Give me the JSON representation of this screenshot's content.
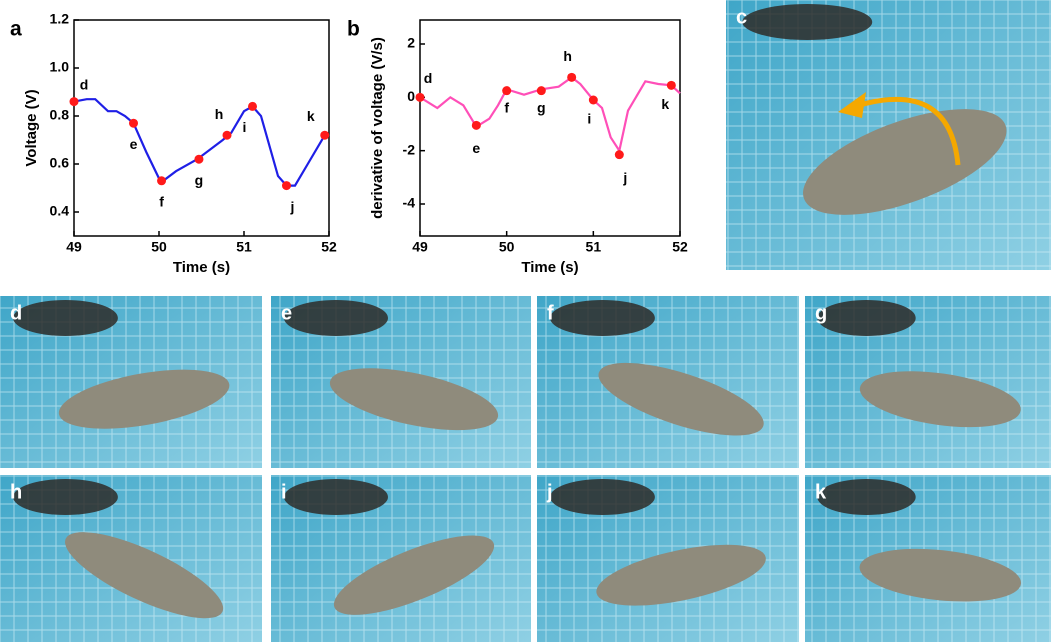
{
  "chart_data": [
    {
      "type": "line",
      "panel": "a",
      "xlabel": "Time (s)",
      "ylabel": "Voltage (V)",
      "xlim": [
        49,
        52
      ],
      "xticks": [
        49,
        50,
        51,
        52
      ],
      "ylim": [
        0.3,
        1.2
      ],
      "yticks": [
        0.4,
        0.6,
        0.8,
        {
          "value": 1,
          "label": "1.0"
        },
        1.2
      ],
      "series": [
        {
          "color": "#1f1fe6",
          "x": [
            49.0,
            49.15,
            49.25,
            49.4,
            49.5,
            49.6,
            49.7,
            49.85,
            50.0,
            50.05,
            50.2,
            50.45,
            50.75,
            50.85,
            51.0,
            51.1,
            51.2,
            51.4,
            51.5,
            51.6,
            51.75,
            51.95
          ],
          "values": [
            0.86,
            0.87,
            0.87,
            0.82,
            0.82,
            0.8,
            0.77,
            0.65,
            0.54,
            0.53,
            0.57,
            0.62,
            0.7,
            0.73,
            0.82,
            0.84,
            0.8,
            0.55,
            0.51,
            0.51,
            0.6,
            0.72
          ]
        }
      ],
      "markers": {
        "color": "#ff1a1a",
        "x": [
          49.0,
          49.7,
          50.03,
          50.47,
          50.8,
          51.1,
          51.5,
          51.95
        ],
        "values": [
          0.86,
          0.77,
          0.53,
          0.62,
          0.72,
          0.84,
          0.51,
          0.72
        ],
        "labels": [
          "d",
          "e",
          "f",
          "g",
          "h",
          "i",
          "j",
          "k"
        ]
      }
    },
    {
      "type": "line",
      "panel": "b",
      "xlabel": "Time (s)",
      "ylabel": "derivative of voltage (V/s)",
      "xlim": [
        49,
        52
      ],
      "xticks": [
        49,
        50,
        51,
        52
      ],
      "ylim": [
        -5.2,
        2.9
      ],
      "yticks": [
        2,
        0,
        -2,
        -4
      ],
      "series": [
        {
          "color": "#ff4fb8",
          "x": [
            49.0,
            49.2,
            49.35,
            49.5,
            49.65,
            49.8,
            49.9,
            50.0,
            50.2,
            50.4,
            50.6,
            50.75,
            50.85,
            51.0,
            51.1,
            51.2,
            51.3,
            51.4,
            51.6,
            51.75,
            51.9,
            52.0
          ],
          "values": [
            0.0,
            -0.4,
            0.0,
            -0.3,
            -1.1,
            -0.8,
            -0.3,
            0.3,
            0.1,
            0.3,
            0.4,
            0.75,
            0.5,
            -0.1,
            -0.4,
            -1.5,
            -2.0,
            -0.5,
            0.6,
            0.5,
            0.45,
            0.15
          ]
        }
      ],
      "markers": {
        "color": "#ff1a1a",
        "x": [
          49.0,
          49.65,
          50.0,
          50.4,
          50.75,
          51.0,
          51.3,
          51.9
        ],
        "values": [
          0.0,
          -1.05,
          0.25,
          0.25,
          0.75,
          -0.1,
          -2.15,
          0.45
        ],
        "labels": [
          "d",
          "e",
          "f",
          "g",
          "h",
          "i",
          "j",
          "k"
        ]
      }
    }
  ],
  "photos": [
    {
      "label": "c"
    },
    {
      "label": "d"
    },
    {
      "label": "e"
    },
    {
      "label": "f"
    },
    {
      "label": "g"
    },
    {
      "label": "h"
    },
    {
      "label": "i"
    },
    {
      "label": "j"
    },
    {
      "label": "k"
    }
  ]
}
